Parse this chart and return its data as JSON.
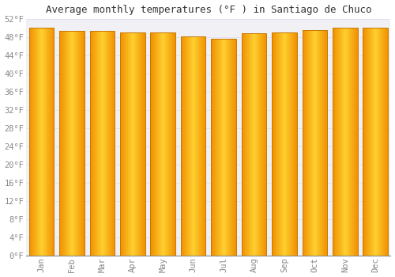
{
  "title": "Average monthly temperatures (°F ) in Santiago de Chuco",
  "months": [
    "Jan",
    "Feb",
    "Mar",
    "Apr",
    "May",
    "Jun",
    "Jul",
    "Aug",
    "Sep",
    "Oct",
    "Nov",
    "Dec"
  ],
  "values": [
    50.0,
    49.3,
    49.3,
    49.1,
    49.1,
    48.2,
    47.7,
    48.9,
    49.1,
    49.5,
    50.0,
    50.0
  ],
  "bar_color_edge": "#E8960A",
  "bar_color_center": "#FFD966",
  "bar_color_outer": "#FFA500",
  "background_color": "#FFFFFF",
  "plot_bg_color": "#F0F0F5",
  "grid_color": "#DDDDEE",
  "ylim": [
    0,
    52
  ],
  "yticks": [
    0,
    4,
    8,
    12,
    16,
    20,
    24,
    28,
    32,
    36,
    40,
    44,
    48,
    52
  ],
  "ytick_labels": [
    "0°F",
    "4°F",
    "8°F",
    "12°F",
    "16°F",
    "20°F",
    "24°F",
    "28°F",
    "32°F",
    "36°F",
    "40°F",
    "44°F",
    "48°F",
    "52°F"
  ],
  "title_fontsize": 9,
  "tick_fontsize": 7.5,
  "bar_width": 0.82
}
